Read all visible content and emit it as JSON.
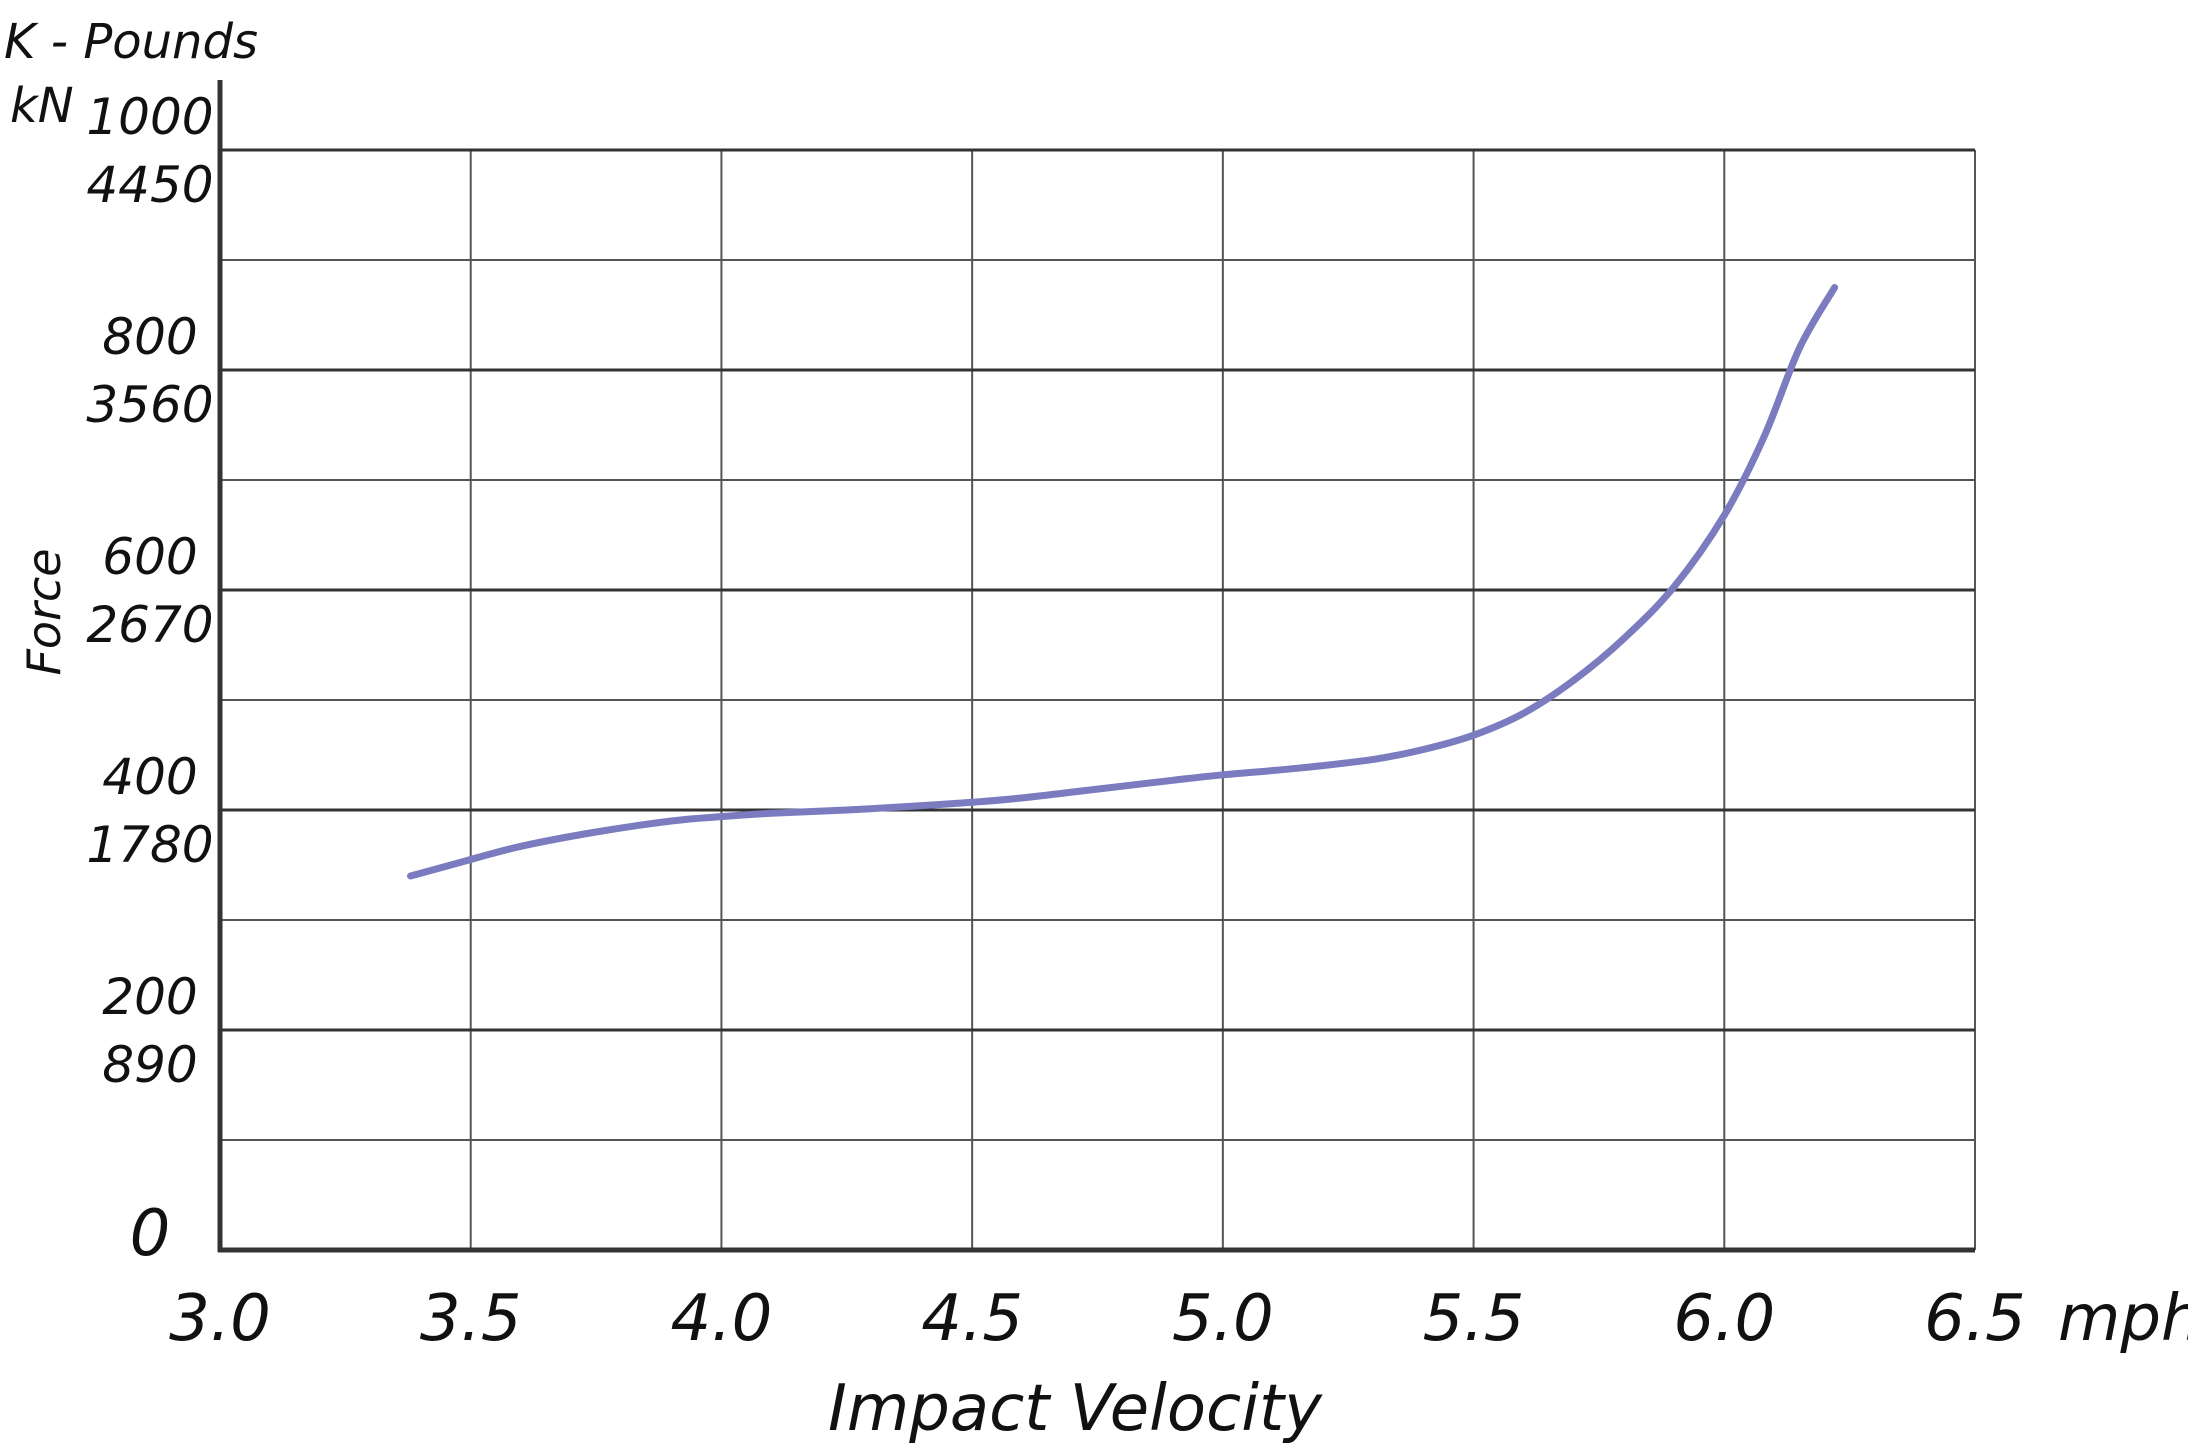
{
  "chart_data": {
    "type": "line",
    "title": "",
    "xlabel": "Impact Velocity",
    "x_unit": "mph",
    "ylabel": "Force",
    "y_units": [
      "K - Pounds",
      "kN"
    ],
    "xlim": [
      3.0,
      6.5
    ],
    "ylim": [
      0,
      1000
    ],
    "grid": true,
    "x_ticks": [
      {
        "value": 3.0,
        "label": "3.0"
      },
      {
        "value": 3.5,
        "label": "3.5"
      },
      {
        "value": 4.0,
        "label": "4.0"
      },
      {
        "value": 4.5,
        "label": "4.5"
      },
      {
        "value": 5.0,
        "label": "5.0"
      },
      {
        "value": 5.5,
        "label": "5.5"
      },
      {
        "value": 6.0,
        "label": "6.0"
      },
      {
        "value": 6.5,
        "label": "6.5"
      }
    ],
    "y_ticks": [
      {
        "value": 1000,
        "kpounds": "1000",
        "kn": "4450"
      },
      {
        "value": 800,
        "kpounds": "800",
        "kn": "3560"
      },
      {
        "value": 600,
        "kpounds": "600",
        "kn": "2670"
      },
      {
        "value": 400,
        "kpounds": "400",
        "kn": "1780"
      },
      {
        "value": 200,
        "kpounds": "200",
        "kn": "890"
      },
      {
        "value": 0,
        "kpounds": "0",
        "kn": ""
      }
    ],
    "series": [
      {
        "name": "",
        "color": "#7b7cbf",
        "points": [
          [
            3.38,
            340
          ],
          [
            3.5,
            355
          ],
          [
            3.6,
            367
          ],
          [
            3.75,
            380
          ],
          [
            3.9,
            390
          ],
          [
            4.0,
            394
          ],
          [
            4.1,
            397
          ],
          [
            4.25,
            400
          ],
          [
            4.4,
            404
          ],
          [
            4.5,
            407
          ],
          [
            4.6,
            411
          ],
          [
            4.75,
            419
          ],
          [
            4.9,
            427
          ],
          [
            5.0,
            432
          ],
          [
            5.15,
            438
          ],
          [
            5.3,
            446
          ],
          [
            5.4,
            455
          ],
          [
            5.5,
            468
          ],
          [
            5.6,
            488
          ],
          [
            5.7,
            518
          ],
          [
            5.8,
            556
          ],
          [
            5.9,
            603
          ],
          [
            6.0,
            668
          ],
          [
            6.08,
            740
          ],
          [
            6.15,
            820
          ],
          [
            6.22,
            875
          ]
        ]
      }
    ]
  }
}
